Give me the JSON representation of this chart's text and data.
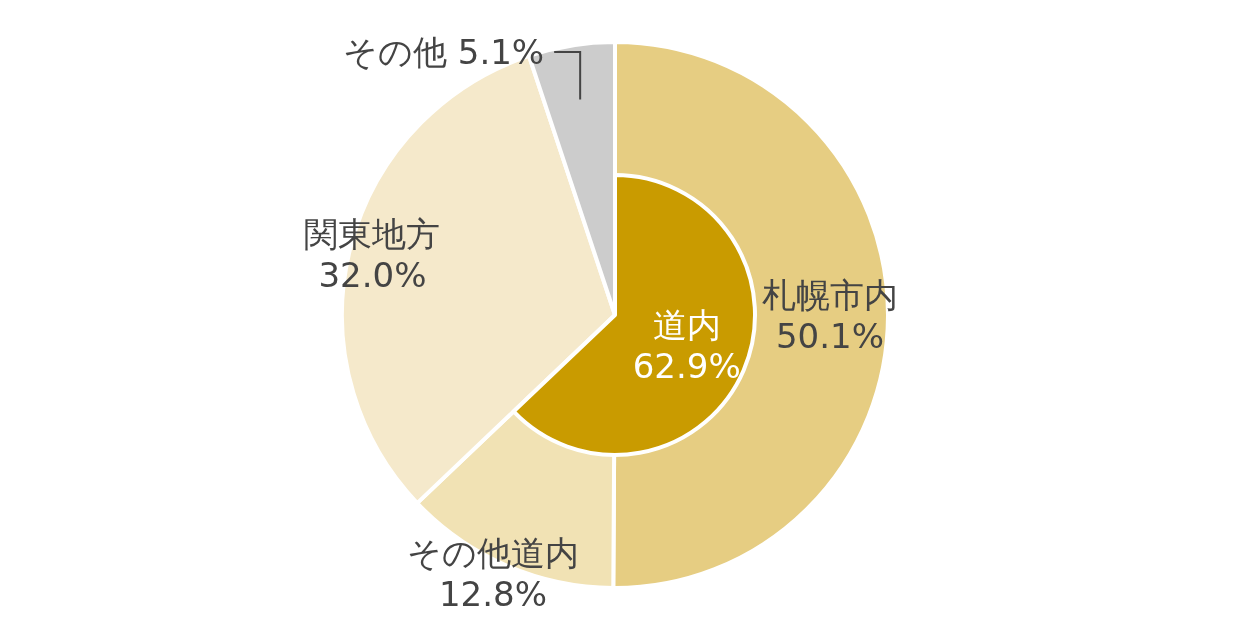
{
  "chart_data": [
    {
      "type": "pie",
      "categories": [
        "札幌市内",
        "その他道内",
        "関東地方",
        "その他"
      ],
      "values": [
        50.1,
        12.8,
        32.0,
        5.1
      ],
      "colors": [
        "#e6cd82",
        "#f1e2b4",
        "#f5e9cb",
        "#cccccc"
      ],
      "value_labels": [
        "50.1%",
        "12.8%",
        "32.0%",
        "5.1%"
      ]
    },
    {
      "type": "pie",
      "categories": [
        "道内"
      ],
      "values": [
        62.9
      ],
      "colors": [
        "#c99b00"
      ],
      "value_labels": [
        "62.9%"
      ]
    }
  ]
}
